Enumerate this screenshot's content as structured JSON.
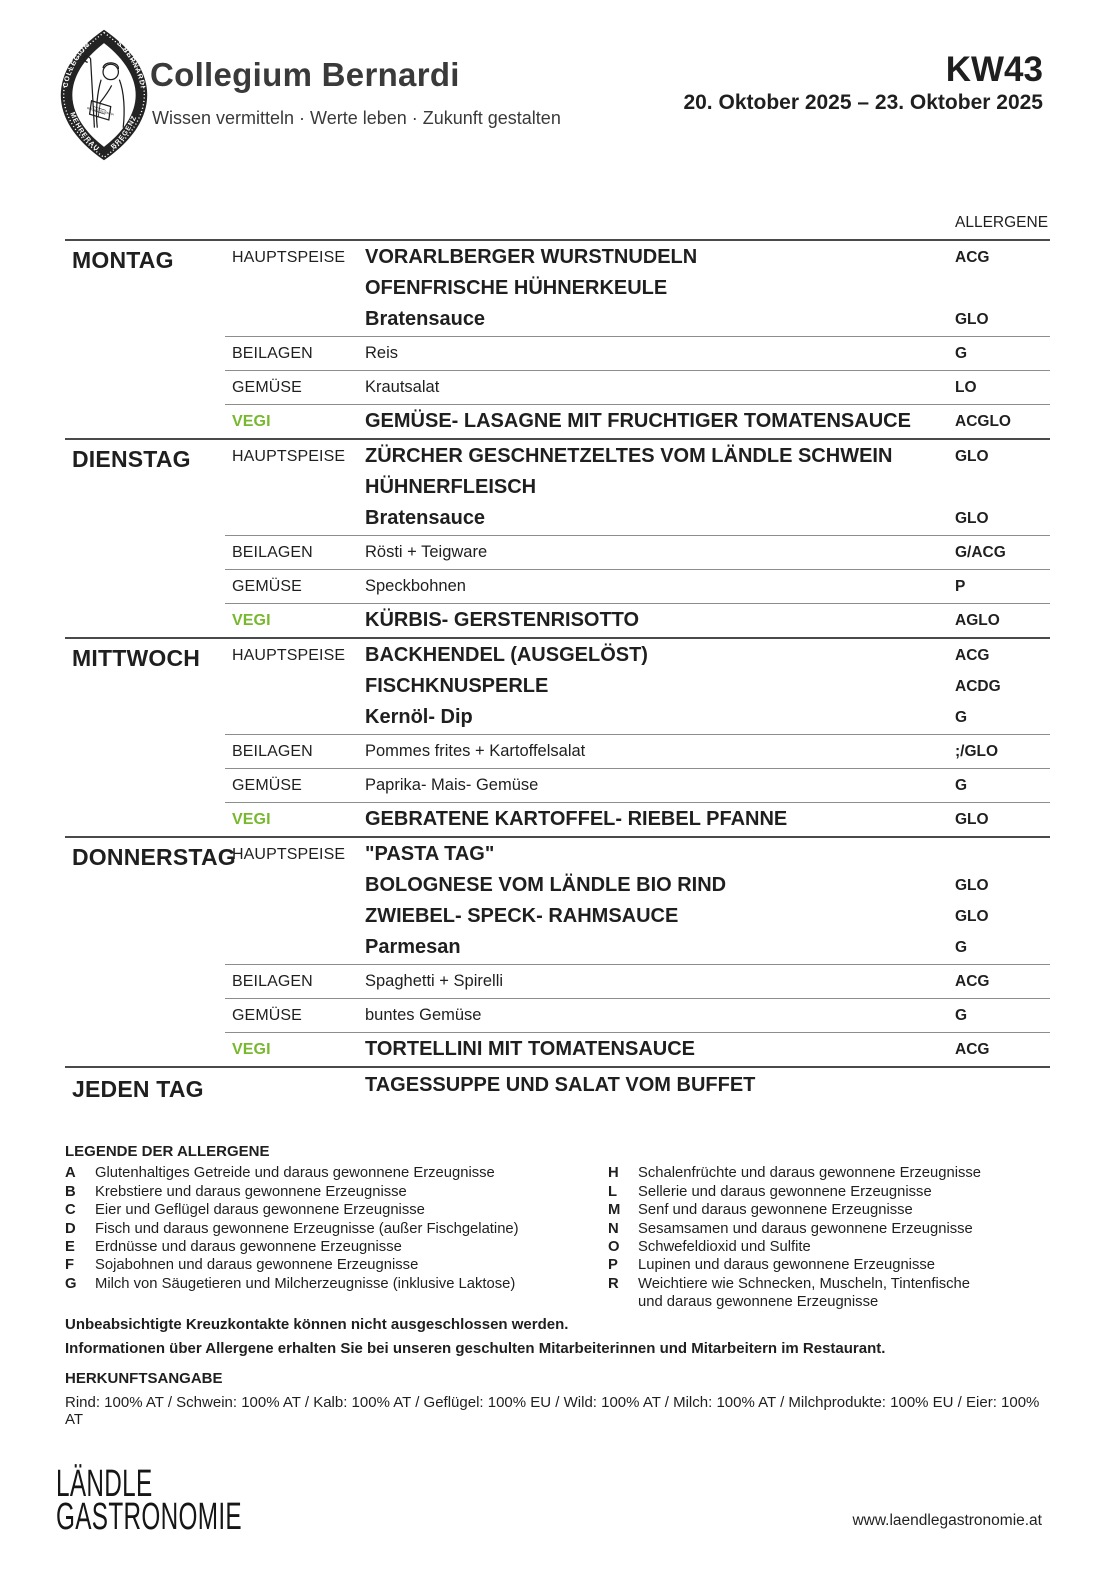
{
  "colors": {
    "vegi_green": "#77b82e",
    "text": "#1f1f1f",
    "day_line": "#4a4a4a",
    "row_line": "#8d8d8d"
  },
  "header": {
    "org_name": "Collegium Bernardi",
    "tagline": "Wissen vermitteln · Werte leben · Zukunft gestalten",
    "week": "KW43",
    "date_range": "20. Oktober 2025 – 23. Oktober 2025",
    "logo": {
      "ring_top_left": "COLLEGIUM",
      "ring_top_right": "S.BERNARDI",
      "ring_bottom_left": "MEHRERAU",
      "ring_bottom_right": "BREGENZ",
      "book_text": "RELIGIO SCIENTIA"
    }
  },
  "menu": {
    "allergene_header": "ALLERGENE",
    "days": [
      {
        "day": "MONTAG",
        "sections": [
          {
            "course": "HAUPTSPEISE",
            "vegi": false,
            "items": [
              {
                "text": "VORARLBERGER WURSTNUDELN",
                "allergens": "ACG",
                "emph": true
              },
              {
                "text": "OFENFRISCHE HÜHNERKEULE",
                "allergens": "",
                "emph": true
              },
              {
                "text": "Bratensauce",
                "allergens": "GLO",
                "emph": true
              }
            ]
          },
          {
            "course": "BEILAGEN",
            "vegi": false,
            "items": [
              {
                "text": "Reis",
                "allergens": "G",
                "emph": false
              }
            ]
          },
          {
            "course": "GEMÜSE",
            "vegi": false,
            "items": [
              {
                "text": "Krautsalat",
                "allergens": "LO",
                "emph": false
              }
            ]
          },
          {
            "course": "VEGI",
            "vegi": true,
            "items": [
              {
                "text": "GEMÜSE- LASAGNE MIT FRUCHTIGER TOMATENSAUCE",
                "allergens": "ACGLO",
                "emph": true
              }
            ]
          }
        ]
      },
      {
        "day": "DIENSTAG",
        "sections": [
          {
            "course": "HAUPTSPEISE",
            "vegi": false,
            "items": [
              {
                "text": "ZÜRCHER GESCHNETZELTES VOM LÄNDLE SCHWEIN",
                "allergens": "GLO",
                "emph": true
              },
              {
                "text": "HÜHNERFLEISCH",
                "allergens": "",
                "emph": true
              },
              {
                "text": "Bratensauce",
                "allergens": "GLO",
                "emph": true
              }
            ]
          },
          {
            "course": "BEILAGEN",
            "vegi": false,
            "items": [
              {
                "text": "Rösti + Teigware",
                "allergens": "G/ACG",
                "emph": false
              }
            ]
          },
          {
            "course": "GEMÜSE",
            "vegi": false,
            "items": [
              {
                "text": "Speckbohnen",
                "allergens": "P",
                "emph": false
              }
            ]
          },
          {
            "course": "VEGI",
            "vegi": true,
            "items": [
              {
                "text": "KÜRBIS- GERSTENRISOTTO",
                "allergens": "AGLO",
                "emph": true
              }
            ]
          }
        ]
      },
      {
        "day": "MITTWOCH",
        "sections": [
          {
            "course": "HAUPTSPEISE",
            "vegi": false,
            "items": [
              {
                "text": "BACKHENDEL (AUSGELÖST)",
                "allergens": "ACG",
                "emph": true
              },
              {
                "text": "FISCHKNUSPERLE",
                "allergens": "ACDG",
                "emph": true
              },
              {
                "text": "Kernöl- Dip",
                "allergens": "G",
                "emph": true
              }
            ]
          },
          {
            "course": "BEILAGEN",
            "vegi": false,
            "items": [
              {
                "text": "Pommes frites + Kartoffelsalat",
                "allergens": ";/GLO",
                "emph": false
              }
            ]
          },
          {
            "course": "GEMÜSE",
            "vegi": false,
            "items": [
              {
                "text": "Paprika- Mais- Gemüse",
                "allergens": "G",
                "emph": false
              }
            ]
          },
          {
            "course": "VEGI",
            "vegi": true,
            "items": [
              {
                "text": "GEBRATENE KARTOFFEL- RIEBEL PFANNE",
                "allergens": "GLO",
                "emph": true
              }
            ]
          }
        ]
      },
      {
        "day": "DONNERSTAG",
        "sections": [
          {
            "course": "HAUPTSPEISE",
            "vegi": false,
            "items": [
              {
                "text": "\"PASTA TAG\"",
                "allergens": "",
                "emph": true
              },
              {
                "text": "BOLOGNESE VOM LÄNDLE BIO RIND",
                "allergens": "GLO",
                "emph": true
              },
              {
                "text": "ZWIEBEL- SPECK- RAHMSAUCE",
                "allergens": "GLO",
                "emph": true
              },
              {
                "text": "Parmesan",
                "allergens": "G",
                "emph": true
              }
            ]
          },
          {
            "course": "BEILAGEN",
            "vegi": false,
            "items": [
              {
                "text": "Spaghetti + Spirelli",
                "allergens": "ACG",
                "emph": false
              }
            ]
          },
          {
            "course": "GEMÜSE",
            "vegi": false,
            "items": [
              {
                "text": "buntes Gemüse",
                "allergens": "G",
                "emph": false
              }
            ]
          },
          {
            "course": "VEGI",
            "vegi": true,
            "items": [
              {
                "text": "TORTELLINI MIT TOMATENSAUCE",
                "allergens": "ACG",
                "emph": true
              }
            ]
          }
        ]
      }
    ],
    "everyday": {
      "day": "JEDEN TAG",
      "text": "TAGESSUPPE UND SALAT VOM BUFFET"
    }
  },
  "legend": {
    "title": "LEGENDE DER ALLERGENE",
    "left": [
      {
        "code": "A",
        "text": "Glutenhaltiges Getreide und daraus gewonnene Erzeugnisse"
      },
      {
        "code": "B",
        "text": "Krebstiere und daraus gewonnene Erzeugnisse"
      },
      {
        "code": "C",
        "text": "Eier und Geflügel daraus gewonnene Erzeugnisse"
      },
      {
        "code": "D",
        "text": "Fisch und daraus gewonnene Erzeugnisse (außer Fischgelatine)"
      },
      {
        "code": "E",
        "text": "Erdnüsse und daraus gewonnene Erzeugnisse"
      },
      {
        "code": "F",
        "text": "Sojabohnen und daraus gewonnene Erzeugnisse"
      },
      {
        "code": "G",
        "text": "Milch von Säugetieren und Milcherzeugnisse (inklusive Laktose)"
      }
    ],
    "right": [
      {
        "code": "H",
        "text": "Schalenfrüchte und daraus gewonnene Erzeugnisse"
      },
      {
        "code": "L",
        "text": "Sellerie und daraus gewonnene Erzeugnisse"
      },
      {
        "code": "M",
        "text": "Senf und daraus gewonnene Erzeugnisse"
      },
      {
        "code": "N",
        "text": "Sesamsamen und daraus gewonnene Erzeugnisse"
      },
      {
        "code": "O",
        "text": "Schwefeldioxid und Sulfite"
      },
      {
        "code": "P",
        "text": "Lupinen und daraus gewonnene Erzeugnisse"
      },
      {
        "code": "R",
        "text": "Weichtiere wie Schnecken, Muscheln, Tintenfische und daraus gewonnene Erzeugnisse"
      }
    ]
  },
  "notes": [
    "Unbeabsichtigte Kreuzkontakte können nicht ausgeschlossen werden.",
    "Informationen über Allergene erhalten Sie bei unseren geschulten Mitarbeiterinnen und Mitarbeitern im Restaurant."
  ],
  "origin": {
    "title": "HERKUNFTSANGABE",
    "text": "Rind: 100% AT / Schwein: 100% AT / Kalb: 100% AT / Geflügel: 100% EU / Wild: 100% AT / Milch: 100% AT / Milchprodukte: 100% EU / Eier: 100% AT"
  },
  "footer": {
    "brand_line1": "LÄNDLE",
    "brand_line2": "GASTRONOMIE",
    "website": "www.laendlegastronomie.at"
  }
}
